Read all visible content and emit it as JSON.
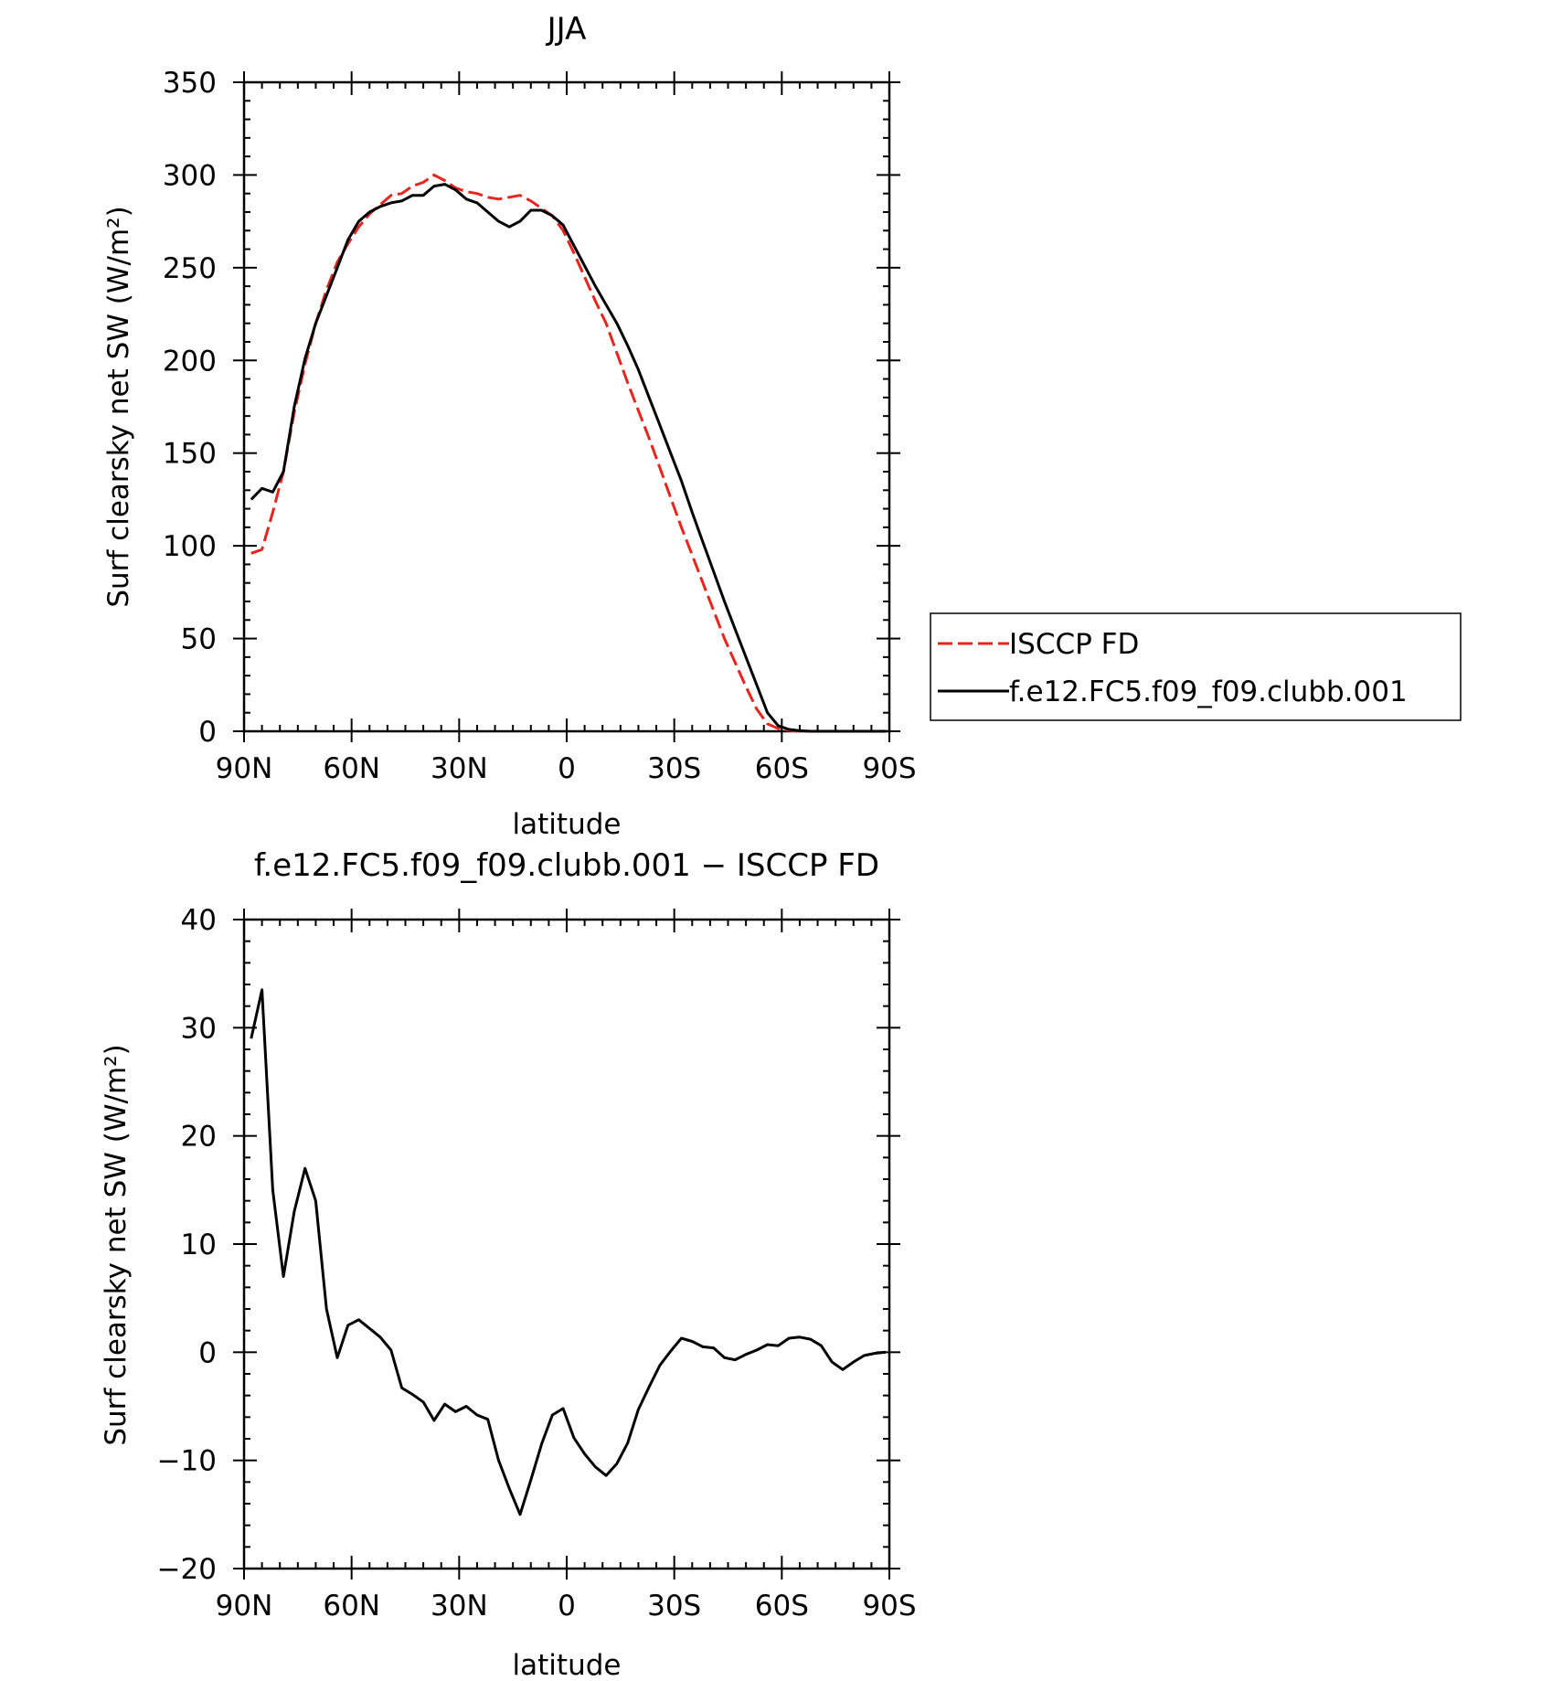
{
  "chart_data": [
    {
      "type": "line",
      "title": "JJA",
      "xlabel": "latitude",
      "ylabel": "Surf clearsky net SW (W/m²)",
      "xlim": [
        90,
        -90
      ],
      "ylim": [
        0,
        350
      ],
      "x_ticks": [
        {
          "value": 90,
          "label": "90N"
        },
        {
          "value": 60,
          "label": "60N"
        },
        {
          "value": 30,
          "label": "30N"
        },
        {
          "value": 0,
          "label": "0"
        },
        {
          "value": -30,
          "label": "30S"
        },
        {
          "value": -60,
          "label": "60S"
        },
        {
          "value": -90,
          "label": "90S"
        }
      ],
      "y_ticks": [
        {
          "value": 0,
          "label": "0"
        },
        {
          "value": 50,
          "label": "50"
        },
        {
          "value": 100,
          "label": "100"
        },
        {
          "value": 150,
          "label": "150"
        },
        {
          "value": 200,
          "label": "200"
        },
        {
          "value": 250,
          "label": "250"
        },
        {
          "value": 300,
          "label": "300"
        },
        {
          "value": 350,
          "label": "350"
        }
      ],
      "legend_position": "right",
      "series": [
        {
          "name": "ISCCP FD",
          "color": "#e8241c",
          "dash": "dashed",
          "x": [
            88,
            85,
            82,
            79,
            76,
            73,
            70,
            67,
            64,
            61,
            58,
            55,
            52,
            49,
            46,
            43,
            40,
            37,
            34,
            31,
            28,
            25,
            22,
            19,
            16,
            13,
            10,
            7,
            4,
            1,
            -2,
            -5,
            -8,
            -11,
            -14,
            -17,
            -20,
            -23,
            -26,
            -29,
            -32,
            -35,
            -38,
            -41,
            -44,
            -47,
            -50,
            -53,
            -56,
            -59,
            -62,
            -65,
            -68,
            -71,
            -74,
            -77,
            -80,
            -83,
            -86,
            -89
          ],
          "y": [
            96,
            98,
            118,
            140,
            172,
            198,
            220,
            238,
            253,
            263,
            272,
            279,
            284,
            289,
            290,
            294,
            296,
            300,
            297,
            293,
            291,
            290,
            288,
            287,
            288,
            289,
            286,
            282,
            278,
            270,
            258,
            245,
            232,
            220,
            204,
            188,
            173,
            158,
            142,
            126,
            110,
            95,
            80,
            65,
            50,
            37,
            24,
            12,
            4,
            1.5,
            0.5,
            0,
            0,
            0,
            0,
            0,
            0,
            0,
            0,
            0
          ]
        },
        {
          "name": "f.e12.FC5.f09_f09.clubb.001",
          "color": "#000000",
          "dash": "solid",
          "x": [
            88,
            85,
            82,
            79,
            76,
            73,
            70,
            67,
            64,
            61,
            58,
            55,
            52,
            49,
            46,
            43,
            40,
            37,
            34,
            31,
            28,
            25,
            22,
            19,
            16,
            13,
            10,
            7,
            4,
            1,
            -2,
            -5,
            -8,
            -11,
            -14,
            -17,
            -20,
            -23,
            -26,
            -29,
            -32,
            -35,
            -38,
            -41,
            -44,
            -47,
            -50,
            -53,
            -56,
            -59,
            -62,
            -65,
            -68,
            -71,
            -74,
            -77,
            -80,
            -83,
            -86,
            -89
          ],
          "y": [
            125,
            131,
            129,
            140,
            175,
            201,
            220,
            235,
            250,
            265,
            275,
            280,
            283,
            285,
            286,
            289,
            289,
            294,
            295,
            292,
            287,
            285,
            280,
            275,
            272,
            275,
            281,
            281,
            278,
            273,
            262,
            251,
            240,
            230,
            220,
            208,
            195,
            180,
            165,
            150,
            135,
            118,
            102,
            86,
            70,
            55,
            40,
            25,
            10,
            3,
            1,
            0.3,
            0,
            0,
            0,
            0,
            0,
            0,
            0,
            0
          ]
        }
      ]
    },
    {
      "type": "line",
      "title": "f.e12.FC5.f09_f09.clubb.001 − ISCCP FD",
      "xlabel": "latitude",
      "ylabel": "Surf clearsky net SW (W/m²)",
      "xlim": [
        90,
        -90
      ],
      "ylim": [
        -20,
        40
      ],
      "x_ticks": [
        {
          "value": 90,
          "label": "90N"
        },
        {
          "value": 60,
          "label": "60N"
        },
        {
          "value": 30,
          "label": "30N"
        },
        {
          "value": 0,
          "label": "0"
        },
        {
          "value": -30,
          "label": "30S"
        },
        {
          "value": -60,
          "label": "60S"
        },
        {
          "value": -90,
          "label": "90S"
        }
      ],
      "y_ticks": [
        {
          "value": -20,
          "label": "−20"
        },
        {
          "value": -10,
          "label": "−10"
        },
        {
          "value": 0,
          "label": "0"
        },
        {
          "value": 10,
          "label": "10"
        },
        {
          "value": 20,
          "label": "20"
        },
        {
          "value": 30,
          "label": "30"
        },
        {
          "value": 40,
          "label": "40"
        }
      ],
      "series": [
        {
          "color": "#000000",
          "dash": "solid",
          "x": [
            88,
            85,
            82,
            79,
            76,
            73,
            70,
            67,
            64,
            61,
            58,
            55,
            52,
            49,
            46,
            43,
            40,
            37,
            34,
            31,
            28,
            25,
            22,
            19,
            16,
            13,
            10,
            7,
            4,
            1,
            -2,
            -5,
            -8,
            -11,
            -14,
            -17,
            -20,
            -23,
            -26,
            -29,
            -32,
            -35,
            -38,
            -41,
            -44,
            -47,
            -50,
            -53,
            -56,
            -59,
            -62,
            -65,
            -68,
            -71,
            -74,
            -77,
            -80,
            -83,
            -86,
            -89
          ],
          "y": [
            29,
            33.5,
            15,
            7,
            13,
            17,
            14,
            4,
            -0.5,
            2.5,
            3,
            2.2,
            1.4,
            0.2,
            -3.3,
            -3.9,
            -4.6,
            -6.3,
            -4.8,
            -5.5,
            -5.0,
            -5.8,
            -6.2,
            -10,
            -12.6,
            -15,
            -11.8,
            -8.5,
            -5.8,
            -5.2,
            -7.9,
            -9.4,
            -10.6,
            -11.4,
            -10.3,
            -8.4,
            -5.3,
            -3.2,
            -1.2,
            0.1,
            1.3,
            1.0,
            0.5,
            0.4,
            -0.5,
            -0.7,
            -0.2,
            0.2,
            0.7,
            0.6,
            1.3,
            1.4,
            1.2,
            0.6,
            -0.9,
            -1.6,
            -0.9,
            -0.3,
            -0.1,
            0
          ]
        }
      ]
    }
  ]
}
